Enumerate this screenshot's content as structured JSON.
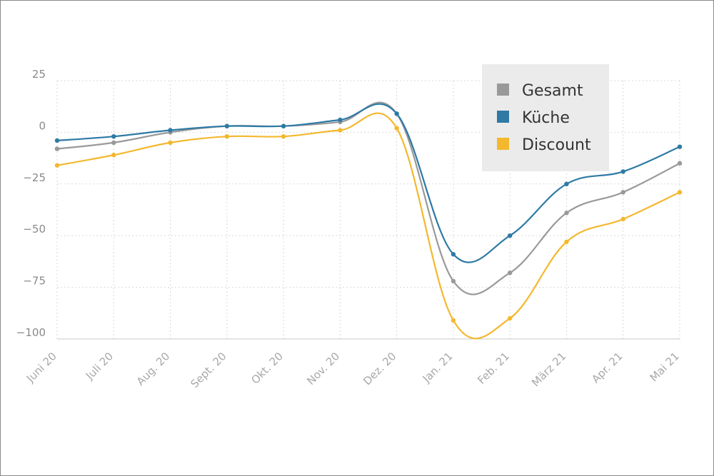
{
  "chart_data": {
    "type": "line",
    "x": [
      "Juni 20",
      "Juli 20",
      "Aug. 20",
      "Sept. 20",
      "Okt. 20",
      "Nov. 20",
      "Dez. 20",
      "Jan. 21",
      "Feb. 21",
      "März 21",
      "Apr. 21",
      "Mai 21"
    ],
    "ylim": [
      -100,
      25
    ],
    "yticks": [
      25,
      0,
      -25,
      -50,
      -75,
      -100
    ],
    "ytick_labels": [
      "25",
      "0",
      "−25",
      "−50",
      "−75",
      "−100"
    ],
    "grid": true,
    "legend_position": "top-right",
    "series": [
      {
        "name": "Gesamt",
        "color": "#999999",
        "values": [
          -8,
          -5,
          0,
          3,
          3,
          5,
          9,
          -72,
          -68,
          -39,
          -29,
          -15
        ]
      },
      {
        "name": "Küche",
        "color": "#2e7aa5",
        "values": [
          -4,
          -2,
          1,
          3,
          3,
          6,
          9,
          -59,
          -50,
          -25,
          -19,
          -7
        ]
      },
      {
        "name": "Discount",
        "color": "#f4b82e",
        "values": [
          -16,
          -11,
          -5,
          -2,
          -2,
          1,
          2,
          -91,
          -90,
          -53,
          -42,
          -29
        ]
      }
    ]
  }
}
